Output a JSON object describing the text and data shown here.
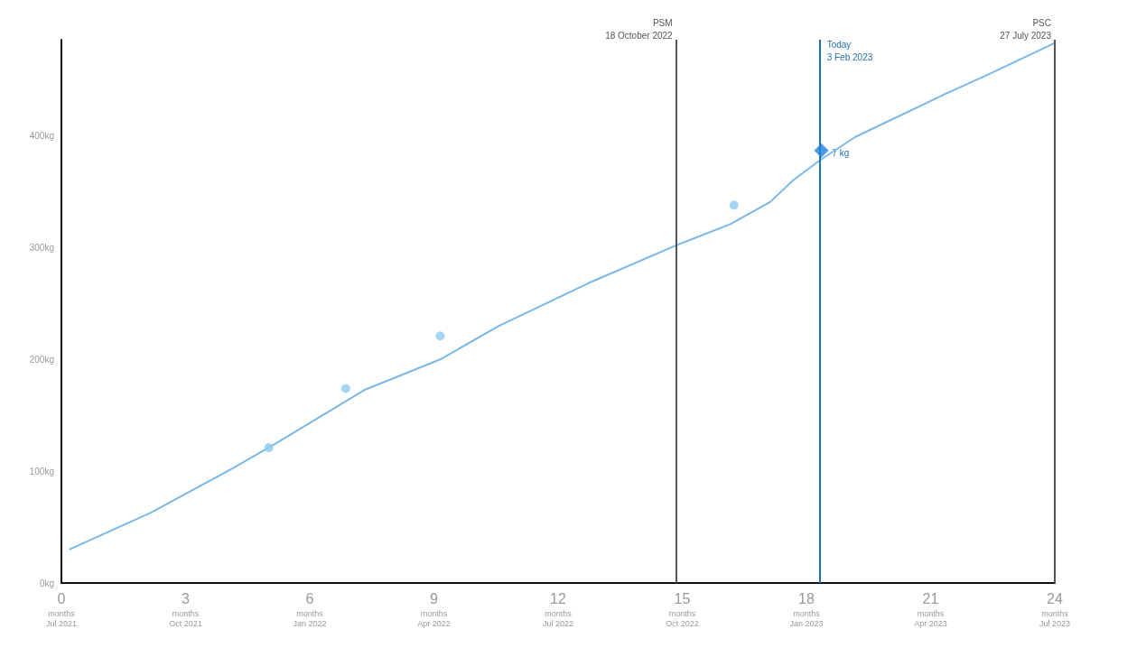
{
  "chart_data": {
    "type": "line",
    "xlim": [
      0,
      24
    ],
    "ylim": [
      0,
      486
    ],
    "xticks": [
      0,
      3,
      6,
      9,
      12,
      15,
      18,
      21,
      24
    ],
    "yticks": [
      {
        "value": 0,
        "label": "0kg"
      },
      {
        "value": 100,
        "label": "100kg"
      },
      {
        "value": 200,
        "label": "200kg"
      },
      {
        "value": 300,
        "label": "300kg"
      },
      {
        "value": 400,
        "label": "400kg"
      }
    ],
    "series": [
      {
        "color": "#7ab8e8",
        "marker": "none",
        "x": [
          0.19,
          2.17,
          4.11,
          5.19,
          7.34,
          9.15,
          10.57,
          12.72,
          14.85,
          16.16,
          17.13,
          17.67,
          18.32,
          19.18,
          21.33,
          22.4,
          24
        ],
        "values": [
          30,
          63,
          102,
          125,
          173,
          200,
          230,
          268,
          302,
          321,
          341,
          360,
          378,
          399,
          437,
          455,
          483
        ]
      },
      {
        "type": "scatter",
        "color": "#8fcaf0",
        "marker": "circle",
        "x": [
          5.01,
          6.87,
          9.15,
          16.25
        ],
        "values": [
          121,
          174,
          221,
          338
        ]
      },
      {
        "type": "scatter",
        "color": "#1f7fe0",
        "marker": "diamond",
        "x": [
          18.36
        ],
        "values": [
          387
        ]
      }
    ],
    "ref_lines": [
      {
        "axis": "x",
        "value": 14.85,
        "label": "PSM\n18 October 2022",
        "color": "#555555"
      },
      {
        "axis": "x",
        "value": 18.32,
        "label": "Today\n3 Feb 2023",
        "color": "#1f6fa8"
      },
      {
        "axis": "x",
        "value": 24,
        "label": "PSC\n27 July 2023",
        "color": "#555555"
      }
    ],
    "annotations": [
      {
        "text": "7 kg",
        "x": 18.36,
        "y": 387
      },
      "months\nJul 2021",
      "months\nOct 2021",
      "months\nJan 2022",
      "months\nApr 2022",
      "months\nJul 2022",
      "months\nOct 2022",
      "months\nJan 2023",
      "months\nApr 2023",
      "months\nJul 2023"
    ]
  }
}
